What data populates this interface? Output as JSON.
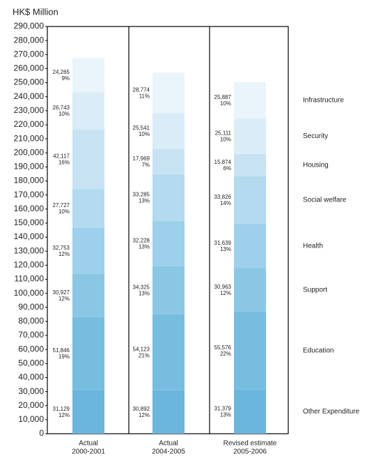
{
  "chart_data": {
    "type": "stacked_bar",
    "y_axis_label": "HK$ Million",
    "categories": [
      [
        "Actual",
        "2000-2001"
      ],
      [
        "Actual",
        "2004-2005"
      ],
      [
        "Revised estimate",
        "2005-2006"
      ]
    ],
    "ylim": [
      0,
      290000
    ],
    "yticks": [
      0,
      {
        "value": 10000,
        "label": "10,000"
      },
      {
        "value": 20000,
        "label": "20,000"
      },
      {
        "value": 30000,
        "label": "30,000"
      },
      {
        "value": 40000,
        "label": "40,000"
      },
      {
        "value": 50000,
        "label": "50,000"
      },
      {
        "value": 60000,
        "label": "60,000"
      },
      {
        "value": 70000,
        "label": "70,000"
      },
      {
        "value": 80000,
        "label": "80,000"
      },
      {
        "value": 90000,
        "label": "90,000"
      },
      {
        "value": 100000,
        "label": "100,000"
      },
      {
        "value": 110000,
        "label": "110,000"
      },
      {
        "value": 120000,
        "label": "120,000"
      },
      {
        "value": 130000,
        "label": "130,000"
      },
      {
        "value": 140000,
        "label": "140,000"
      },
      {
        "value": 150000,
        "label": "150,000"
      },
      {
        "value": 160000,
        "label": "160,000"
      },
      {
        "value": 170000,
        "label": "170,000"
      },
      {
        "value": 180000,
        "label": "180,000"
      },
      {
        "value": 190000,
        "label": "190,000"
      },
      {
        "value": 200000,
        "label": "200,000"
      },
      {
        "value": 210000,
        "label": "210,000"
      },
      {
        "value": 220000,
        "label": "220,000"
      },
      {
        "value": 230000,
        "label": "230,000"
      },
      {
        "value": 240000,
        "label": "240,000"
      },
      {
        "value": 250000,
        "label": "250,000"
      },
      {
        "value": 260000,
        "label": "260,000"
      },
      {
        "value": 270000,
        "label": "270,000"
      },
      {
        "value": 280000,
        "label": "280,000"
      },
      {
        "value": 290000,
        "label": "290,000"
      }
    ],
    "series": [
      {
        "name": "Other Expenditure",
        "color": "#6bb6dd",
        "values": [
          31129,
          30892,
          31379
        ],
        "value_labels": [
          "31,129",
          "30,892",
          "31,379"
        ],
        "percent_labels": [
          "12%",
          "12%",
          "13%"
        ]
      },
      {
        "name": "Education",
        "color": "#77bde0",
        "values": [
          51846,
          54123,
          55576
        ],
        "value_labels": [
          "51,846",
          "54,123",
          "55,576"
        ],
        "percent_labels": [
          "19%",
          "21%",
          "22%"
        ]
      },
      {
        "name": "Support",
        "color": "#8ac7e5",
        "values": [
          30927,
          34325,
          30963
        ],
        "value_labels": [
          "30,927",
          "34,325",
          "30,963"
        ],
        "percent_labels": [
          "12%",
          "13%",
          "12%"
        ]
      },
      {
        "name": "Health",
        "color": "#9dd0ea",
        "values": [
          32753,
          32228,
          31639
        ],
        "value_labels": [
          "32,753",
          "32,228",
          "31,639"
        ],
        "percent_labels": [
          "12%",
          "13%",
          "13%"
        ]
      },
      {
        "name": "Social welfare",
        "color": "#b3daef",
        "values": [
          27727,
          33285,
          33826
        ],
        "value_labels": [
          "27,727",
          "33,285",
          "33,826"
        ],
        "percent_labels": [
          "10%",
          "13%",
          "14%"
        ]
      },
      {
        "name": "Housing",
        "color": "#c7e3f3",
        "values": [
          42117,
          17969,
          15874
        ],
        "value_labels": [
          "42,117",
          "17,969",
          "15,874"
        ],
        "percent_labels": [
          "16%",
          "7%",
          "6%"
        ]
      },
      {
        "name": "Security",
        "color": "#d9ecf7",
        "values": [
          26743,
          25541,
          25111
        ],
        "value_labels": [
          "26,743",
          "25,541",
          "25,111"
        ],
        "percent_labels": [
          "10%",
          "10%",
          "10%"
        ]
      },
      {
        "name": "Infrastructure",
        "color": "#eaf4fb",
        "values": [
          24265,
          28774,
          25887
        ],
        "value_labels": [
          "24,265",
          "28,774",
          "25,887"
        ],
        "percent_labels": [
          "9%",
          "11%",
          "10%"
        ]
      }
    ]
  }
}
